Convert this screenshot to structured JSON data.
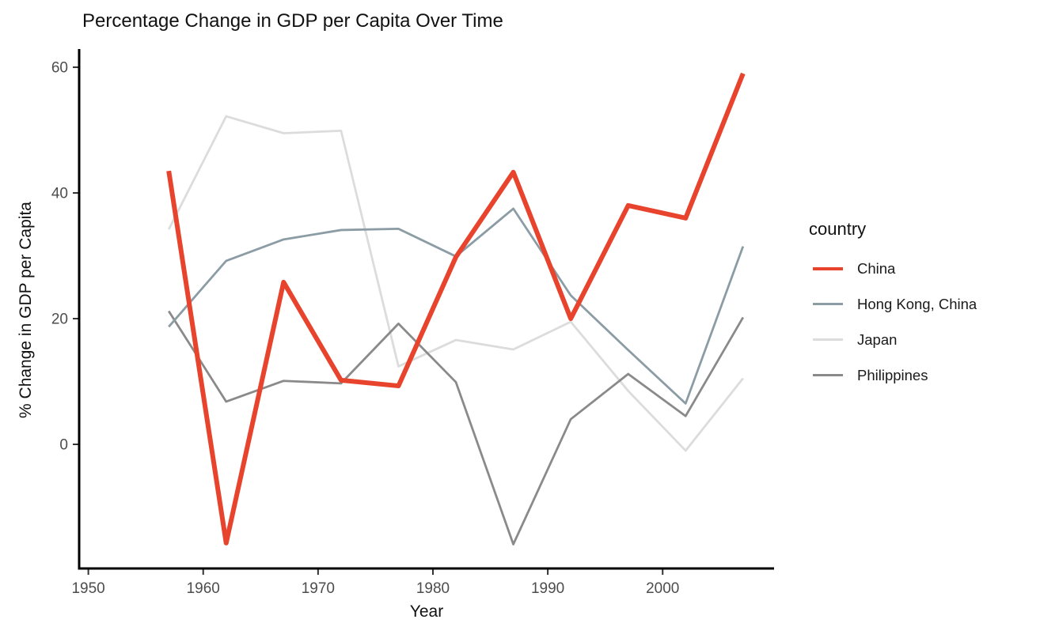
{
  "title": "Percentage Change in GDP per Capita Over Time",
  "axes": {
    "x_label": "Year",
    "y_label": "% Change in GDP per Capita"
  },
  "legend": {
    "title": "country"
  },
  "colors": {
    "axis_line": "#000000",
    "tick_mark": "#333333",
    "tick_label": "#4d4d4d",
    "text": "#111111",
    "background": "#ffffff",
    "china_red": "#E8432C",
    "hong_kong_gray": "#8C9CA5",
    "japan_gray": "#DCDCDC",
    "philippines_gray": "#8A8A8A"
  },
  "chart_data": {
    "type": "line",
    "title": "Percentage Change in GDP per Capita Over Time",
    "xlabel": "Year",
    "ylabel": "% Change in GDP per Capita",
    "legend_title": "country",
    "legend_position": "right",
    "grid": false,
    "x": [
      1957,
      1962,
      1967,
      1972,
      1977,
      1982,
      1987,
      1992,
      1997,
      2002,
      2007
    ],
    "series": [
      {
        "name": "China",
        "color": "#E8432C",
        "line_width": 6,
        "legend_swatch_height": 4,
        "values": [
          43.5,
          -15.7,
          25.8,
          10.2,
          9.3,
          29.8,
          43.3,
          20.0,
          38.0,
          36.0,
          59.0
        ]
      },
      {
        "name": "Hong Kong, China",
        "color": "#8C9CA5",
        "line_width": 2.8,
        "legend_swatch_height": 3,
        "values": [
          18.7,
          29.2,
          32.6,
          34.1,
          34.3,
          29.9,
          37.5,
          23.7,
          15.0,
          6.5,
          31.5
        ]
      },
      {
        "name": "Japan",
        "color": "#DCDCDC",
        "line_width": 2.8,
        "legend_swatch_height": 3,
        "values": [
          34.2,
          52.2,
          49.5,
          49.9,
          12.4,
          16.6,
          15.1,
          19.5,
          8.5,
          -1.0,
          10.5
        ]
      },
      {
        "name": "Philippines",
        "color": "#8A8A8A",
        "line_width": 2.8,
        "legend_swatch_height": 3,
        "values": [
          21.2,
          6.8,
          10.1,
          9.7,
          19.2,
          9.9,
          -15.9,
          4.0,
          11.2,
          4.5,
          20.2
        ]
      }
    ],
    "x_ticks": [
      1950,
      1960,
      1970,
      1980,
      1990,
      2000
    ],
    "y_ticks": [
      0,
      20,
      40,
      60
    ],
    "x_range": [
      1949.2,
      2009.7
    ],
    "y_range": [
      -19.75,
      62.9
    ]
  }
}
